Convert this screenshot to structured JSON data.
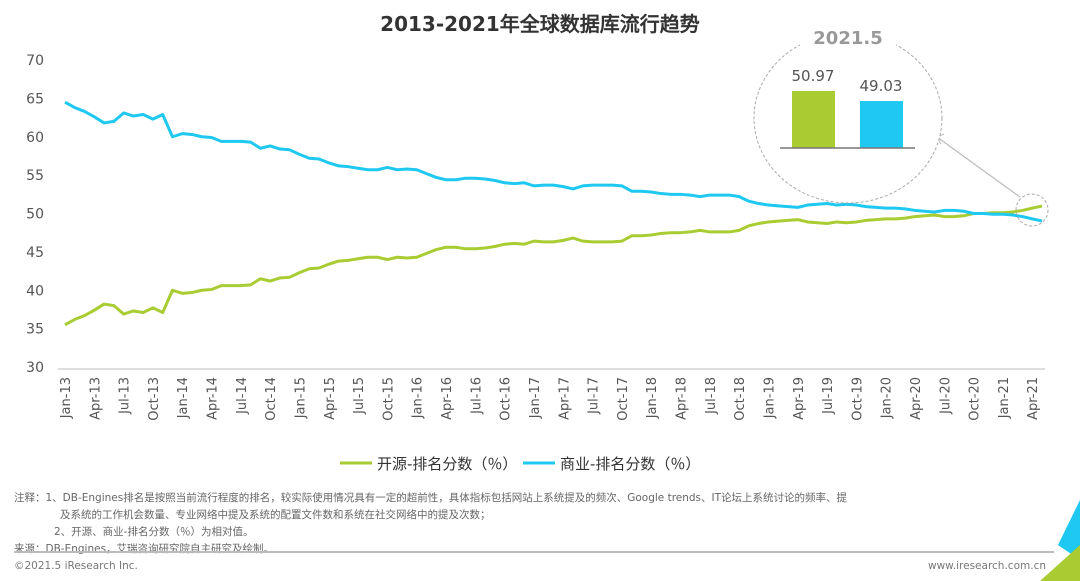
{
  "chart_data": {
    "type": "line",
    "title": "2013-2021年全球数据库流行趋势",
    "xlabel": "",
    "ylabel": "",
    "ylim": [
      30,
      70
    ],
    "yticks": [
      30,
      35,
      40,
      45,
      50,
      55,
      60,
      65,
      70
    ],
    "xticks": [
      "Jan-13",
      "Apr-13",
      "Jul-13",
      "Oct-13",
      "Jan-14",
      "Apr-14",
      "Jul-14",
      "Oct-14",
      "Jan-15",
      "Apr-15",
      "Jul-15",
      "Oct-15",
      "Jan-16",
      "Apr-16",
      "Jul-16",
      "Oct-16",
      "Jan-17",
      "Apr-17",
      "Jul-17",
      "Oct-17",
      "Jan-18",
      "Apr-18",
      "Jul-18",
      "Oct-18",
      "Jan-19",
      "Apr-19",
      "Jul-19",
      "Oct-19",
      "Jan-20",
      "Apr-20",
      "Jul-20",
      "Oct-20",
      "Jan-21",
      "Apr-21"
    ],
    "x_start": "Jan-13",
    "x_end": "May-21",
    "grid": false,
    "legend": "bottom",
    "series": [
      {
        "name": "开源-排名分数（％）",
        "color": "#a9cc33",
        "values": [
          35.5,
          36.2,
          36.7,
          37.4,
          38.2,
          38.0,
          36.9,
          37.3,
          37.1,
          37.7,
          37.1,
          40.0,
          39.6,
          39.7,
          40.0,
          40.1,
          40.6,
          40.6,
          40.6,
          40.7,
          41.5,
          41.2,
          41.6,
          41.7,
          42.3,
          42.8,
          42.9,
          43.4,
          43.8,
          43.9,
          44.1,
          44.3,
          44.3,
          44.0,
          44.3,
          44.2,
          44.3,
          44.8,
          45.3,
          45.6,
          45.6,
          45.4,
          45.4,
          45.5,
          45.7,
          46.0,
          46.1,
          46.0,
          46.4,
          46.3,
          46.3,
          46.5,
          46.8,
          46.4,
          46.3,
          46.3,
          46.3,
          46.4,
          47.1,
          47.1,
          47.2,
          47.4,
          47.5,
          47.5,
          47.6,
          47.8,
          47.6,
          47.6,
          47.6,
          47.8,
          48.4,
          48.7,
          48.9,
          49.0,
          49.1,
          49.2,
          48.9,
          48.8,
          48.7,
          48.9,
          48.8,
          48.9,
          49.1,
          49.2,
          49.3,
          49.3,
          49.4,
          49.6,
          49.7,
          49.8,
          49.6,
          49.6,
          49.7,
          50.0,
          50.0,
          50.1,
          50.1,
          50.2,
          50.4,
          50.7,
          50.97
        ]
      },
      {
        "name": "商业-排名分数（％）",
        "color": "#1ec8f0",
        "values": [
          64.5,
          63.8,
          63.3,
          62.6,
          61.8,
          62.0,
          63.1,
          62.7,
          62.9,
          62.3,
          62.9,
          60.0,
          60.4,
          60.3,
          60.0,
          59.9,
          59.4,
          59.4,
          59.4,
          59.3,
          58.5,
          58.8,
          58.4,
          58.3,
          57.7,
          57.2,
          57.1,
          56.6,
          56.2,
          56.1,
          55.9,
          55.7,
          55.7,
          56.0,
          55.7,
          55.8,
          55.7,
          55.2,
          54.7,
          54.4,
          54.4,
          54.6,
          54.6,
          54.5,
          54.3,
          54.0,
          53.9,
          54.0,
          53.6,
          53.7,
          53.7,
          53.5,
          53.2,
          53.6,
          53.7,
          53.7,
          53.7,
          53.6,
          52.9,
          52.9,
          52.8,
          52.6,
          52.5,
          52.5,
          52.4,
          52.2,
          52.4,
          52.4,
          52.4,
          52.2,
          51.6,
          51.3,
          51.1,
          51.0,
          50.9,
          50.8,
          51.1,
          51.2,
          51.3,
          51.1,
          51.2,
          51.1,
          50.9,
          50.8,
          50.7,
          50.7,
          50.6,
          50.4,
          50.3,
          50.2,
          50.4,
          50.4,
          50.3,
          50.0,
          50.0,
          49.9,
          49.9,
          49.8,
          49.6,
          49.3,
          49.03
        ]
      }
    ],
    "inset": {
      "title": "2021.5",
      "type": "bar",
      "values": [
        50.97,
        49.03
      ],
      "labels": [
        "50.97",
        "49.03"
      ]
    }
  },
  "notes": {
    "line1": "注释：1、DB-Engines排名是按照当前流行程度的排名，较实际使用情况具有一定的超前性，具体指标包括网站上系统提及的频次、Google trends、IT论坛上系统讨论的频率、提",
    "line2": "及系统的工作机会数量、专业网络中提及系统的配置文件数和系统在社交网络中的提及次数；",
    "line3": "2、开源、商业-排名分数（％）为相对值。",
    "source": "来源：DB-Engines，艾瑞咨询研究院自主研究及绘制。"
  },
  "footer": {
    "left": "©2021.5 iResearch Inc.",
    "right": "www.iresearch.com.cn"
  }
}
